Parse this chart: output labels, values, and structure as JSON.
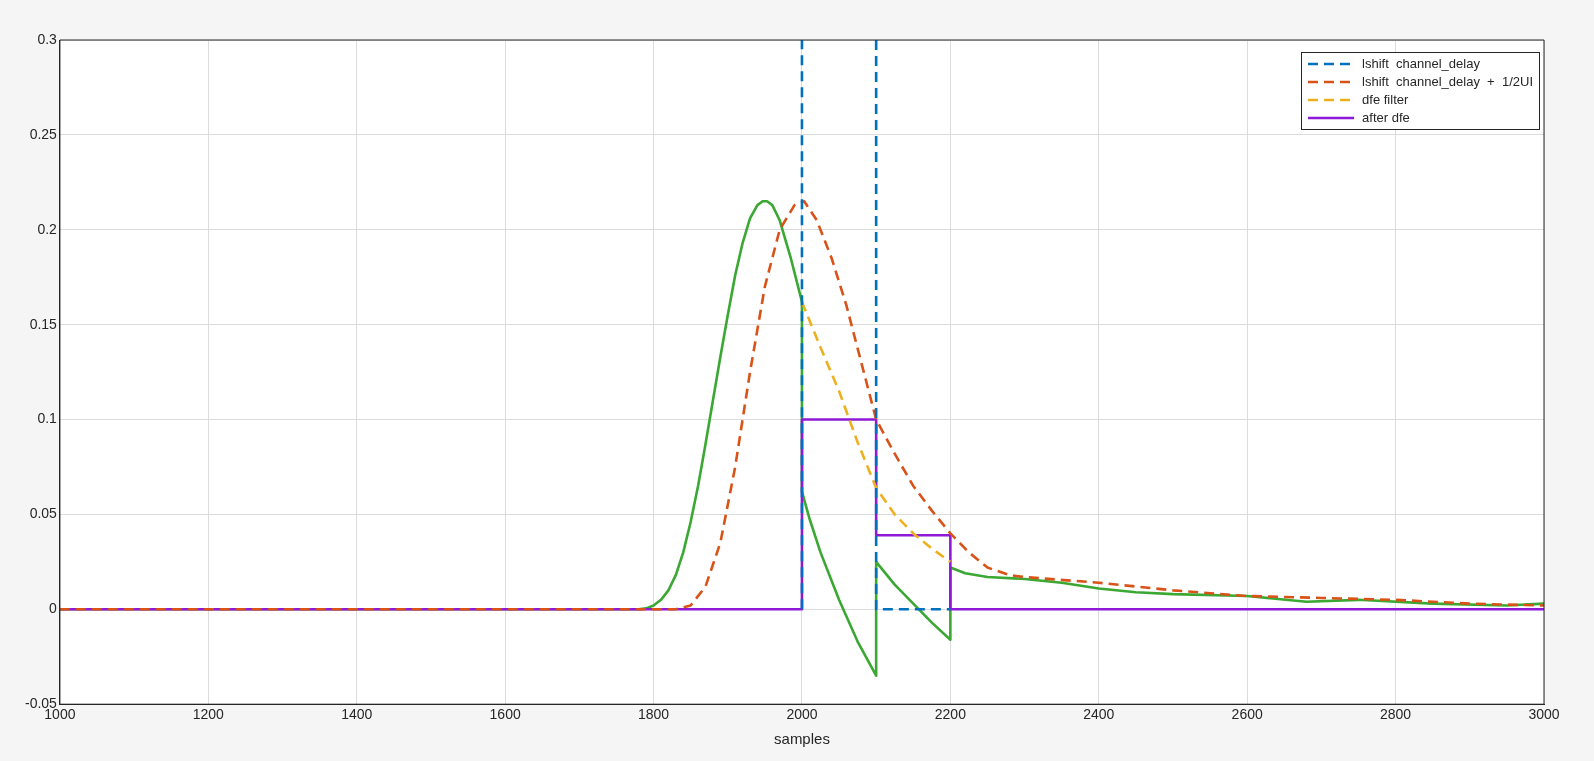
{
  "chart_data": {
    "type": "line",
    "xlabel": "samples",
    "xlim": [
      1000,
      3000
    ],
    "xticks": [
      1000,
      1200,
      1400,
      1600,
      1800,
      2000,
      2200,
      2400,
      2600,
      2800,
      3000
    ],
    "ylim": [
      -0.05,
      0.3
    ],
    "yticks": [
      -0.05,
      0,
      0.05,
      0.1,
      0.15,
      0.2,
      0.25,
      0.3
    ],
    "grid": true,
    "legend": "top right",
    "series": [
      {
        "name": "lshift  channel_delay",
        "color": "#0072bd",
        "line_style": "dashed",
        "x": [
          2000,
          2000,
          2050,
          2100,
          2100,
          2200
        ],
        "values": [
          0,
          0.3,
          null,
          0.3,
          0,
          0
        ]
      },
      {
        "name": "lshift  channel_delay  +  1/2UI",
        "color": "#d95319",
        "line_style": "dashed",
        "x": [
          1000,
          1830,
          1850,
          1870,
          1890,
          1910,
          1930,
          1950,
          1970,
          1990,
          2003,
          2020,
          2040,
          2060,
          2080,
          2100,
          2125,
          2150,
          2175,
          2200,
          2225,
          2250,
          2280,
          2300,
          2400,
          2500,
          2600,
          2700,
          2800,
          2900,
          3000
        ],
        "values": [
          0,
          0,
          0.002,
          0.012,
          0.035,
          0.075,
          0.125,
          0.17,
          0.2,
          0.213,
          0.215,
          0.205,
          0.185,
          0.16,
          0.13,
          0.1,
          0.082,
          0.065,
          0.052,
          0.04,
          0.03,
          0.022,
          0.018,
          0.017,
          0.014,
          0.01,
          0.007,
          0.006,
          0.005,
          0.003,
          0.002
        ]
      },
      {
        "name": "dfe filter",
        "color": "#edb120",
        "line_style": "dashed",
        "x": [
          2000,
          2025,
          2050,
          2075,
          2100,
          2125,
          2150,
          2175,
          2200
        ],
        "values": [
          0.162,
          0.138,
          0.115,
          0.088,
          0.064,
          0.05,
          0.04,
          0.032,
          0.025
        ]
      },
      {
        "name": "after dfe",
        "color": "#8e1ad8",
        "line_style": "solid",
        "x": [
          1000,
          2000,
          2000,
          2100,
          2100,
          2200,
          2200,
          3000
        ],
        "values": [
          0,
          0,
          0.1,
          0.1,
          0.039,
          0.039,
          0,
          0
        ]
      },
      {
        "color": "#3aa832",
        "line_style": "solid",
        "x": [
          1000,
          1780,
          1790,
          1800,
          1810,
          1820,
          1830,
          1840,
          1850,
          1860,
          1870,
          1880,
          1890,
          1900,
          1910,
          1920,
          1930,
          1940,
          1947,
          1953,
          1960,
          1970,
          1985,
          2000,
          2000,
          2010,
          2025,
          2050,
          2075,
          2100,
          2100,
          2125,
          2150,
          2175,
          2200,
          2200,
          2220,
          2250,
          2300,
          2350,
          2400,
          2450,
          2500,
          2600,
          2680,
          2750,
          2850,
          2950,
          3000
        ],
        "values": [
          0,
          0,
          0.0005,
          0.002,
          0.005,
          0.01,
          0.018,
          0.03,
          0.046,
          0.065,
          0.087,
          0.11,
          0.133,
          0.155,
          0.176,
          0.193,
          0.206,
          0.213,
          0.215,
          0.215,
          0.213,
          0.205,
          0.185,
          0.162,
          0.062,
          0.048,
          0.03,
          0.005,
          -0.017,
          -0.035,
          0.025,
          0.013,
          0.003,
          -0.007,
          -0.016,
          0.022,
          0.019,
          0.017,
          0.016,
          0.014,
          0.011,
          0.009,
          0.008,
          0.007,
          0.004,
          0.005,
          0.003,
          0.002,
          0.003
        ]
      }
    ]
  }
}
